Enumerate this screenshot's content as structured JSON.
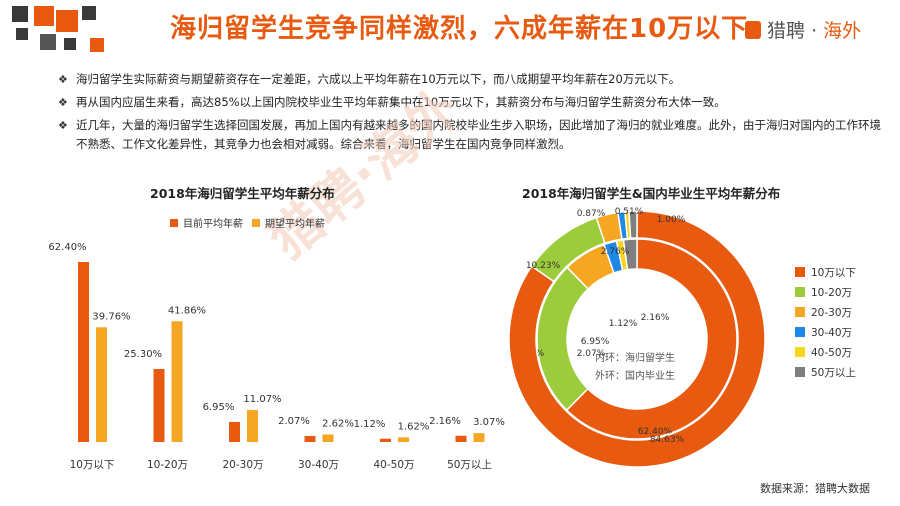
{
  "header": {
    "title": "海归留学生竞争同样激烈，六成年薪在10万以下",
    "brand_main": "猎聘",
    "brand_sep": "·",
    "brand_sub": "海外"
  },
  "bullets": [
    "海归留学生实际薪资与期望薪资存在一定差距，六成以上平均年薪在10万元以下，而八成期望平均年薪在20万元以下。",
    "再从国内应届生来看，高达85%以上国内院校毕业生平均年薪集中在10万元以下，其薪资分布与海归留学生薪资分布大体一致。",
    "近几年，大量的海归留学生选择回国发展，再加上国内有越来越多的国内院校毕业生步入职场，因此增加了海归的就业难度。此外，由于海归对国内的工作环境不熟悉、工作文化差异性，其竞争力也会相对减弱。综合来看，海归留学生在国内竞争同样激烈。"
  ],
  "watermark": "猎聘·海外",
  "source": "数据来源：猎聘大数据",
  "colors": {
    "accent": "#e85a10",
    "current": "#e85a10",
    "expected": "#f5a623",
    "ring": [
      "#e85a10",
      "#9ccc3c",
      "#f5a623",
      "#1e88e5",
      "#f7d51d",
      "#7f7f7f"
    ]
  },
  "chart_data": [
    {
      "type": "bar",
      "title": "2018年海归留学生平均年薪分布",
      "categories": [
        "10万以下",
        "10-20万",
        "20-30万",
        "30-40万",
        "40-50万",
        "50万以上"
      ],
      "series": [
        {
          "name": "目前平均年薪",
          "values": [
            62.4,
            25.3,
            6.95,
            2.07,
            1.12,
            2.16
          ],
          "labels": [
            "62.40%",
            "25.30%",
            "6.95%",
            "2.07%",
            "1.12%",
            "2.16%"
          ]
        },
        {
          "name": "期望平均年薪",
          "values": [
            39.76,
            41.86,
            11.07,
            2.62,
            1.62,
            3.07
          ],
          "labels": [
            "39.76%",
            "41.86%",
            "11.07%",
            "2.62%",
            "1.62%",
            "3.07%"
          ]
        }
      ],
      "legend": "top",
      "grid": false
    },
    {
      "type": "pie",
      "subtype": "double-donut",
      "title": "2018年海归留学生&国内毕业生平均年薪分布",
      "categories": [
        "10万以下",
        "10-20万",
        "20-30万",
        "30-40万",
        "40-50万",
        "50万以上"
      ],
      "series": [
        {
          "name": "内环：海归留学生",
          "values": [
            62.4,
            25.3,
            6.95,
            2.07,
            1.12,
            2.16
          ],
          "labels": [
            "62.40%",
            "25.30%",
            "6.95%",
            "2.07%",
            "1.12%",
            "2.16%"
          ]
        },
        {
          "name": "外环：国内毕业生",
          "values": [
            84.63,
            10.23,
            2.76,
            0.87,
            0.51,
            1.0
          ],
          "labels": [
            "84.63%",
            "10.23%",
            "2.76%",
            "0.87%",
            "0.51%",
            "1.00%"
          ]
        }
      ],
      "legend": "right"
    }
  ]
}
